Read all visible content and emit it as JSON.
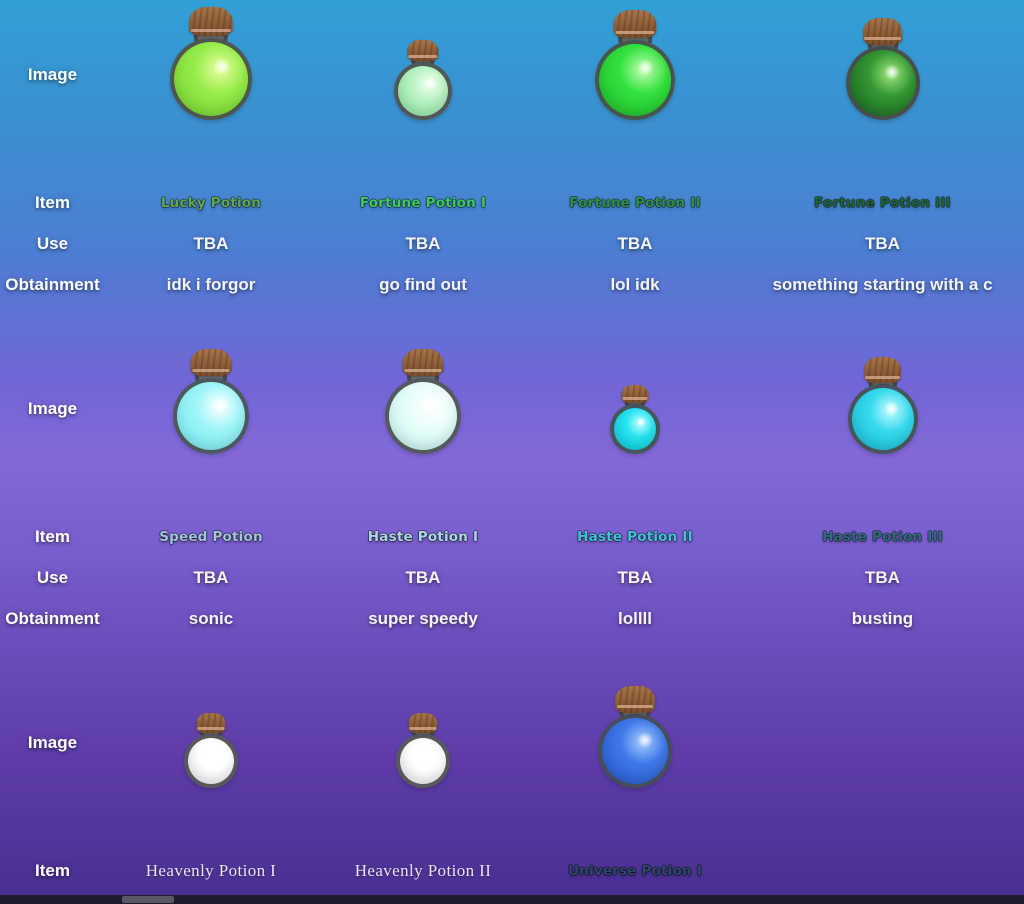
{
  "row_labels": {
    "image": "Image",
    "item": "Item",
    "use": "Use",
    "obtainment": "Obtainment"
  },
  "colors": {
    "background_top": "#31a0d5",
    "background_middle": "#8268d8",
    "background_bottom": "#4a2e90",
    "scrollbar_track": "#1e1b2c",
    "scrollbar_thumb": "#5a5662"
  },
  "groups": [
    {
      "items": [
        {
          "name": "Lucky Potion",
          "name_style": {
            "color": "#5fa84b"
          },
          "use": "TBA",
          "obtainment": "idk i forgor",
          "potion_icon": "green lucky potion bottle",
          "potion_style": {
            "--bulb": "82px",
            "--hi": "#e8ffa0",
            "--liquid": "#97ec4a",
            "--deep": "#7cd836"
          }
        },
        {
          "name": "Fortune Potion I",
          "name_style": {
            "color": "#3ecb5b"
          },
          "use": "TBA",
          "obtainment": "go find out",
          "potion_icon": "pale mint fortune potion bottle",
          "potion_style": {
            "--bulb": "58px",
            "--hi": "#f2fff4",
            "--liquid": "#b9f2c4",
            "--deep": "#94e6a8"
          }
        },
        {
          "name": "Fortune Potion II",
          "name_style": {
            "color": "#2e9142"
          },
          "use": "TBA",
          "obtainment": "lol idk",
          "potion_icon": "bright green fortune potion bottle",
          "potion_style": {
            "--bulb": "80px",
            "--hi": "#c4ffb0",
            "--liquid": "#31e13e",
            "--deep": "#22c52e"
          }
        },
        {
          "name": "Fortune Potion III",
          "name_style": {
            "color": "#1f632c"
          },
          "use": "TBA",
          "obtainment": "something starting with a c",
          "potion_icon": "dark green fortune potion bottle",
          "potion_style": {
            "--bulb": "74px",
            "--hi": "#a0e87c",
            "--liquid": "#339733",
            "--deep": "#1f7026"
          }
        }
      ]
    },
    {
      "items": [
        {
          "name": "Speed Potion",
          "name_style": {
            "color": "#a0c6d7"
          },
          "use": "TBA",
          "obtainment": "sonic",
          "potion_icon": "light cyan speed potion bottle",
          "potion_style": {
            "--bulb": "76px",
            "--hi": "#ffffff",
            "--liquid": "#9ef5f8",
            "--deep": "#7fe9ef"
          }
        },
        {
          "name": "Haste Potion I",
          "name_style": {
            "color": "#aadade"
          },
          "use": "TBA",
          "obtainment": "super speedy",
          "potion_icon": "pale white-cyan haste potion bottle",
          "potion_style": {
            "--bulb": "76px",
            "--hi": "#ffffff",
            "--liquid": "#e8fdfb",
            "--deep": "#c9f5f0"
          }
        },
        {
          "name": "Haste Potion II",
          "name_style": {
            "color": "#3fc5d7"
          },
          "use": "TBA",
          "obtainment": "lollll",
          "potion_icon": "small bright cyan haste potion bottle",
          "potion_style": {
            "--bulb": "50px",
            "--hi": "#c0feff",
            "--liquid": "#26e3f0",
            "--deep": "#12cfdf"
          }
        },
        {
          "name": "Haste Potion III",
          "name_style": {
            "color": "#2d6e76"
          },
          "use": "TBA",
          "obtainment": "busting",
          "potion_icon": "sparkling cyan haste potion bottle",
          "potion_style": {
            "--bulb": "70px",
            "--hi": "#c4feff",
            "--liquid": "#36d9ee",
            "--deep": "#1fc3dc"
          }
        }
      ]
    },
    {
      "items": [
        {
          "name": "Heavenly Potion I",
          "name_style": {
            "color": "#e9e3f6"
          },
          "potion_icon": "small white heavenly potion bottle",
          "potion_style": {
            "--bulb": "54px",
            "--hi": "#ffffff",
            "--liquid": "#ffffff",
            "--deep": "#eeeef2"
          }
        },
        {
          "name": "Heavenly Potion II",
          "name_style": {
            "color": "#e9e3f6"
          },
          "potion_icon": "small white heavenly potion bottle",
          "potion_style": {
            "--bulb": "54px",
            "--hi": "#ffffff",
            "--liquid": "#ffffff",
            "--deep": "#eeeef2"
          }
        },
        {
          "name": "Universe Potion I",
          "name_style": {
            "color": "#2a4a66"
          },
          "potion_icon": "blue universe potion bottle",
          "potion_style": {
            "--bulb": "74px",
            "--hi": "#a8ccff",
            "--liquid": "#3e78e8",
            "--deep": "#2b5fd0"
          }
        }
      ]
    }
  ]
}
